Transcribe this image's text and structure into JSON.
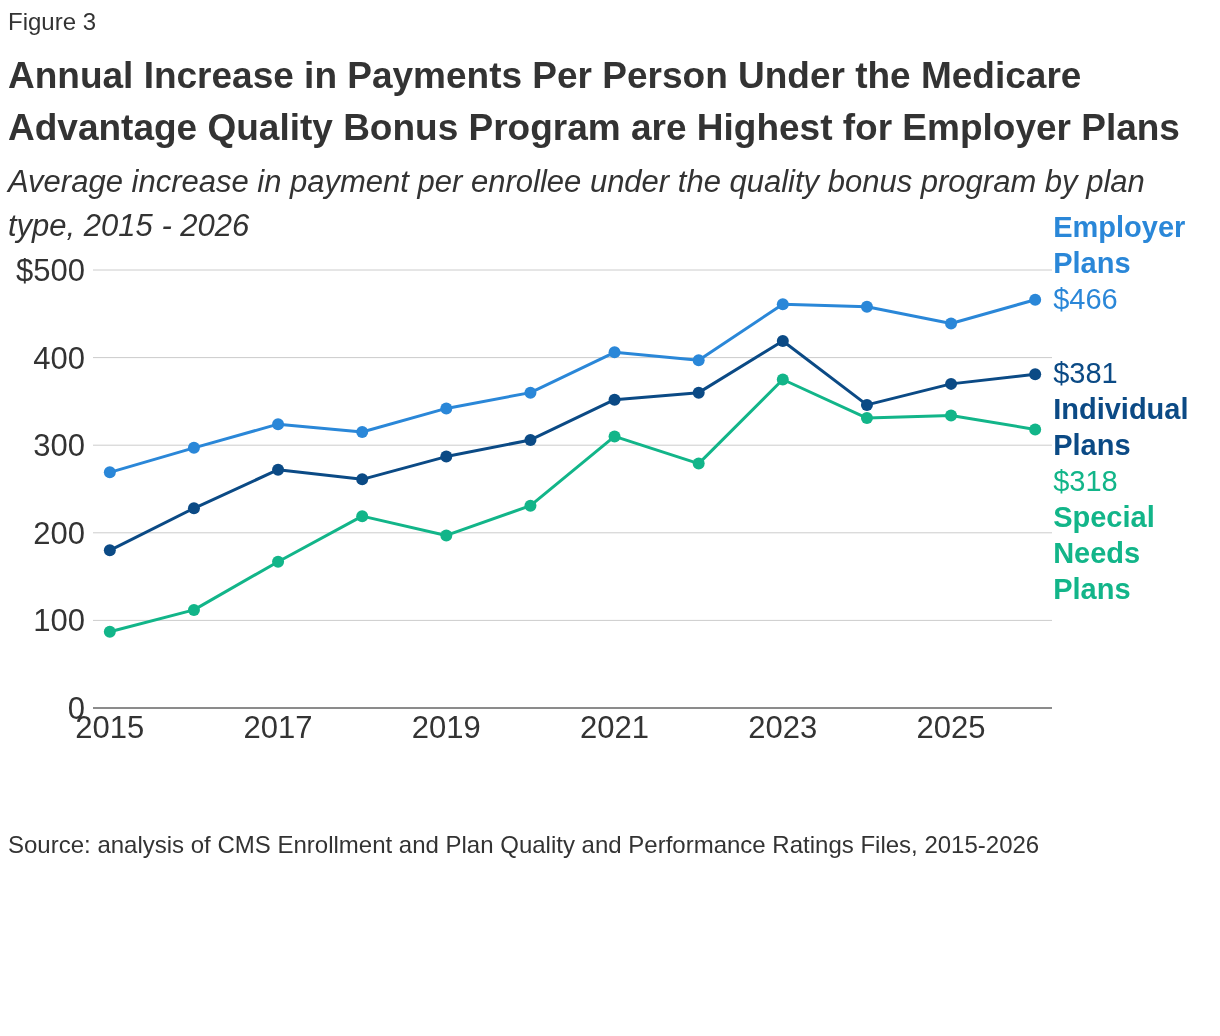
{
  "chart_data": {
    "type": "line",
    "title": "Annual Increase in Payments Per Person Under the Medicare Advantage Quality Bonus Program are Highest for Employer Plans",
    "subtitle": "Average increase in payment per enrollee under the quality bonus program by plan type, 2015 - 2026",
    "annotations": [
      "Figure 3",
      "Source: analysis of CMS Enrollment and Plan Quality and Performance Ratings Files, 2015-2026"
    ],
    "x": [
      2015,
      2016,
      2017,
      2018,
      2019,
      2020,
      2021,
      2022,
      2023,
      2024,
      2025,
      2026
    ],
    "series": [
      {
        "name": "Employer Plans",
        "color": "#2a87d8",
        "values": [
          269,
          297,
          324,
          315,
          342,
          360,
          406,
          397,
          461,
          458,
          439,
          466
        ],
        "value_labels": [
          null,
          null,
          null,
          null,
          null,
          null,
          null,
          null,
          null,
          null,
          null,
          "$466"
        ]
      },
      {
        "name": "Individual Plans",
        "color": "#0b4a85",
        "values": [
          180,
          228,
          272,
          261,
          287,
          306,
          352,
          360,
          419,
          346,
          370,
          381
        ],
        "value_labels": [
          null,
          null,
          null,
          null,
          null,
          null,
          null,
          null,
          null,
          null,
          null,
          "$381"
        ]
      },
      {
        "name": "Special Needs Plans",
        "color": "#12b589",
        "values": [
          87,
          112,
          167,
          219,
          197,
          231,
          310,
          279,
          375,
          331,
          334,
          318
        ],
        "value_labels": [
          null,
          null,
          null,
          null,
          null,
          null,
          null,
          null,
          null,
          null,
          null,
          "$318"
        ]
      }
    ],
    "xlim": [
      2014.8,
      2026.2
    ],
    "xticks": [
      2015,
      2017,
      2019,
      2021,
      2023,
      2025
    ],
    "ylim": [
      0,
      500
    ],
    "yticks": [
      0,
      100,
      200,
      300,
      400,
      {
        "value": 500,
        "label": "$500"
      }
    ],
    "grid": "y",
    "legend": false,
    "marker": "circle",
    "line_style": "solid"
  }
}
